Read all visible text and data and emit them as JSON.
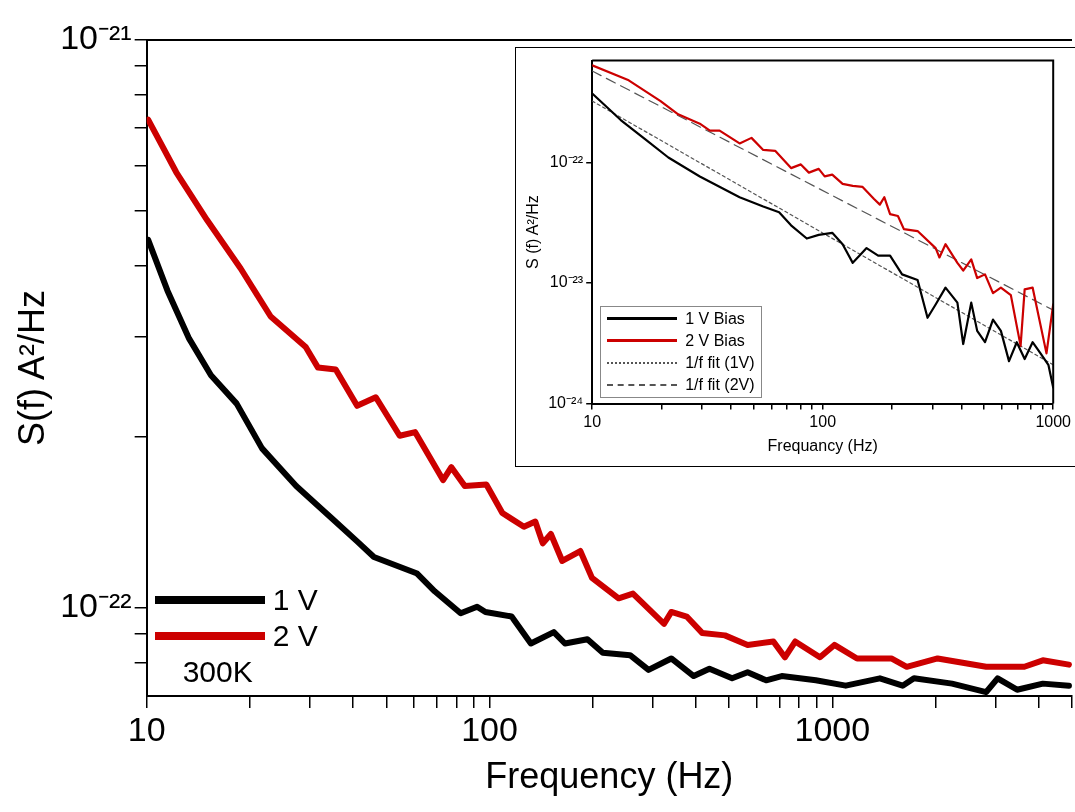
{
  "chart_data": [
    {
      "type": "line",
      "xlabel": "Frequency (Hz)",
      "ylabel": "S(f) A²/Hz",
      "log": "xy",
      "grid": false,
      "legend": "bottom left",
      "marker": "none",
      "line_style": "solid",
      "xlim": [
        10,
        5000
      ],
      "ylim": [
        7e-23,
        1e-21
      ],
      "xticks": [
        10,
        {
          "value": 20,
          "label": null
        },
        {
          "value": 30,
          "label": null
        },
        {
          "value": 40,
          "label": null
        },
        {
          "value": 50,
          "label": null
        },
        {
          "value": 60,
          "label": null
        },
        {
          "value": 70,
          "label": null
        },
        {
          "value": 80,
          "label": null
        },
        {
          "value": 90,
          "label": null
        },
        100,
        {
          "value": 200,
          "label": null
        },
        {
          "value": 300,
          "label": null
        },
        {
          "value": 400,
          "label": null
        },
        {
          "value": 500,
          "label": null
        },
        {
          "value": 600,
          "label": null
        },
        {
          "value": 700,
          "label": null
        },
        {
          "value": 800,
          "label": null
        },
        {
          "value": 900,
          "label": null
        },
        1000,
        {
          "value": 2000,
          "label": null
        },
        {
          "value": 3000,
          "label": null
        },
        {
          "value": 4000,
          "label": null
        },
        {
          "value": 5000,
          "label": null
        }
      ],
      "yticks": [
        {
          "value": 8e-23,
          "label": null
        },
        {
          "value": 9e-23,
          "label": null
        },
        {
          "value": 1e-22,
          "label": "10⁻²²"
        },
        {
          "value": 2e-22,
          "label": null
        },
        {
          "value": 3e-22,
          "label": null
        },
        {
          "value": 4e-22,
          "label": null
        },
        {
          "value": 5e-22,
          "label": null
        },
        {
          "value": 6e-22,
          "label": null
        },
        {
          "value": 7e-22,
          "label": null
        },
        {
          "value": 8e-22,
          "label": null
        },
        {
          "value": 9e-22,
          "label": null
        },
        {
          "value": 1e-21,
          "label": "10⁻²¹"
        }
      ],
      "annotations": [
        "300K"
      ],
      "series": [
        {
          "name": "1 V",
          "color": "#000000",
          "x": [
            10.1,
            11.5,
            13.3,
            15.4,
            18.3,
            21.7,
            27.3,
            34.6,
            41.1,
            46.0,
            61.5,
            69.2,
            82.4,
            92.0,
            97.3,
            116,
            132,
            154,
            166,
            193,
            214,
            257,
            291,
            339,
            394,
            438,
            510,
            566,
            641,
            712,
            895,
            1094,
            1376,
            1603,
            1730,
            2234,
            2809,
            3034,
            3459,
            4111,
            4898
          ],
          "values": [
            4.45e-22,
            3.62e-22,
            2.98e-22,
            2.57e-22,
            2.29e-22,
            1.91e-22,
            1.64e-22,
            1.44e-22,
            1.31e-22,
            1.23e-22,
            1.15e-22,
            1.07e-22,
            9.79e-23,
            1.005e-22,
            9.84e-23,
            9.66e-23,
            8.66e-23,
            9.07e-23,
            8.66e-23,
            8.81e-23,
            8.34e-23,
            8.26e-23,
            7.78e-23,
            8.15e-23,
            7.59e-23,
            7.82e-23,
            7.52e-23,
            7.71e-23,
            7.46e-23,
            7.59e-23,
            7.46e-23,
            7.3e-23,
            7.52e-23,
            7.3e-23,
            7.52e-23,
            7.36e-23,
            7.11e-23,
            7.52e-23,
            7.18e-23,
            7.36e-23,
            7.3e-23
          ]
        },
        {
          "name": "2 V",
          "color": "#cc0000",
          "x": [
            10.1,
            12.2,
            15.0,
            18.8,
            23.0,
            29.1,
            31.6,
            35.6,
            41.1,
            46.6,
            54.7,
            60.7,
            73.2,
            77.4,
            84.7,
            97.9,
            109,
            126,
            136,
            143,
            151,
            163,
            184,
            199,
            238,
            262,
            323,
            339,
            376,
            417,
            486,
            566,
            673,
            727,
            779,
            920,
            1014,
            1180,
            1486,
            1648,
            2028,
            2809,
            3631,
            4111,
            4898
          ],
          "values": [
            7.24e-22,
            5.85e-22,
            4.82e-22,
            3.96e-22,
            3.26e-22,
            2.88e-22,
            2.65e-22,
            2.63e-22,
            2.27e-22,
            2.35e-22,
            2.01e-22,
            2.04e-22,
            1.68e-22,
            1.77e-22,
            1.64e-22,
            1.65e-22,
            1.47e-22,
            1.39e-22,
            1.42e-22,
            1.3e-22,
            1.35e-22,
            1.21e-22,
            1.26e-22,
            1.13e-22,
            1.04e-22,
            1.06e-22,
            9.38e-23,
            9.84e-23,
            9.66e-23,
            9.04e-23,
            8.95e-23,
            8.61e-23,
            8.73e-23,
            8.19e-23,
            8.73e-23,
            8.19e-23,
            8.61e-23,
            8.15e-23,
            8.15e-23,
            7.88e-23,
            8.15e-23,
            7.88e-23,
            7.88e-23,
            8.09e-23,
            7.95e-23
          ]
        }
      ]
    },
    {
      "type": "line",
      "xlabel": "Frequancy (Hz)",
      "ylabel": "S (f) A²/Hz",
      "log": "xy",
      "grid": false,
      "legend": "bottom left",
      "marker": "none",
      "line_style": "solid",
      "xlim": [
        10,
        1000
      ],
      "ylim": [
        1e-24,
        7e-22
      ],
      "xticks": [
        10,
        {
          "value": 20,
          "label": null
        },
        {
          "value": 30,
          "label": null
        },
        {
          "value": 40,
          "label": null
        },
        {
          "value": 50,
          "label": null
        },
        {
          "value": 60,
          "label": null
        },
        {
          "value": 70,
          "label": null
        },
        {
          "value": 80,
          "label": null
        },
        {
          "value": 90,
          "label": null
        },
        100,
        {
          "value": 200,
          "label": null
        },
        {
          "value": 300,
          "label": null
        },
        {
          "value": 400,
          "label": null
        },
        {
          "value": 500,
          "label": null
        },
        {
          "value": 600,
          "label": null
        },
        {
          "value": 700,
          "label": null
        },
        {
          "value": 800,
          "label": null
        },
        {
          "value": 900,
          "label": null
        },
        1000
      ],
      "yticks": [
        {
          "value": 1e-24,
          "label": "10⁻²⁴"
        },
        {
          "value": 1e-23,
          "label": "10⁻²³"
        },
        {
          "value": 1e-22,
          "label": "10⁻²²"
        }
      ],
      "series": [
        {
          "name": "1 V Bias",
          "color": "#000000",
          "x": [
            10,
            13.3,
            16.9,
            21.4,
            29.3,
            43.6,
            55.2,
            64.7,
            72.9,
            85.3,
            96.1,
            110,
            122,
            135,
            155,
            174,
            196,
            221,
            258,
            285,
            309,
            341,
            384,
            407,
            441,
            468,
            506,
            548,
            593,
            643,
            695,
            752,
            814,
            881,
            953,
            1000
          ],
          "values": [
            3.73e-22,
            2.25e-22,
            1.57e-22,
            1.1e-22,
            7.66e-23,
            5.15e-23,
            4.31e-23,
            3.87e-23,
            3.01e-23,
            2.34e-23,
            2.51e-23,
            2.61e-23,
            2.1e-23,
            1.47e-23,
            1.95e-23,
            1.69e-23,
            1.69e-23,
            1.18e-23,
            1.06e-23,
            5.15e-24,
            6.64e-24,
            9.17e-24,
            6.88e-24,
            3.12e-24,
            6.88e-24,
            4.01e-24,
            3.23e-24,
            4.98e-24,
            4.01e-24,
            2.25e-24,
            3.23e-24,
            2.34e-24,
            3.23e-24,
            2.61e-24,
            2.1e-24,
            1.36e-24
          ]
        },
        {
          "name": "2 V Bias",
          "color": "#cc0000",
          "x": [
            10,
            14.4,
            19.8,
            23.6,
            29.3,
            32.4,
            35.7,
            43.6,
            49.1,
            55.2,
            62.2,
            72.9,
            80.4,
            87.1,
            96.1,
            102,
            110,
            122,
            135,
            149,
            167,
            177,
            185,
            196,
            212,
            225,
            258,
            309,
            321,
            341,
            384,
            407,
            441,
            468,
            506,
            548,
            593,
            655,
            722,
            752,
            814,
            935,
            1000
          ],
          "values": [
            6.4e-22,
            4.8e-22,
            3.23e-22,
            2.51e-22,
            2.1e-22,
            1.84e-22,
            1.84e-22,
            1.44e-22,
            1.6e-22,
            1.27e-22,
            1.25e-22,
            8.98e-23,
            9.64e-23,
            8.24e-23,
            8.85e-23,
            7.66e-23,
            7.94e-23,
            6.64e-23,
            6.4e-23,
            6.27e-23,
            4.98e-23,
            4.47e-23,
            5.15e-23,
            3.73e-23,
            3.6e-23,
            2.8e-23,
            2.7e-23,
            1.95e-23,
            1.63e-23,
            2.1e-23,
            1.47e-23,
            1.27e-23,
            1.57e-23,
            1.1e-23,
            1.18e-23,
            8.24e-24,
            9.17e-24,
            7.94e-24,
            3.01e-24,
            8.85e-24,
            9.17e-24,
            2.61e-24,
            6.64e-24
          ]
        },
        {
          "name": "1/f fit (1V)",
          "color": "#555555",
          "line_style": "dotted",
          "x": [
            10,
            1000
          ],
          "values": [
            3.23e-22,
            2.1e-24
          ]
        },
        {
          "name": "1/f fit (2V)",
          "color": "#555555",
          "line_style": "dashed",
          "x": [
            10,
            1000
          ],
          "values": [
            5.74e-22,
            5.96e-24
          ]
        }
      ]
    }
  ]
}
